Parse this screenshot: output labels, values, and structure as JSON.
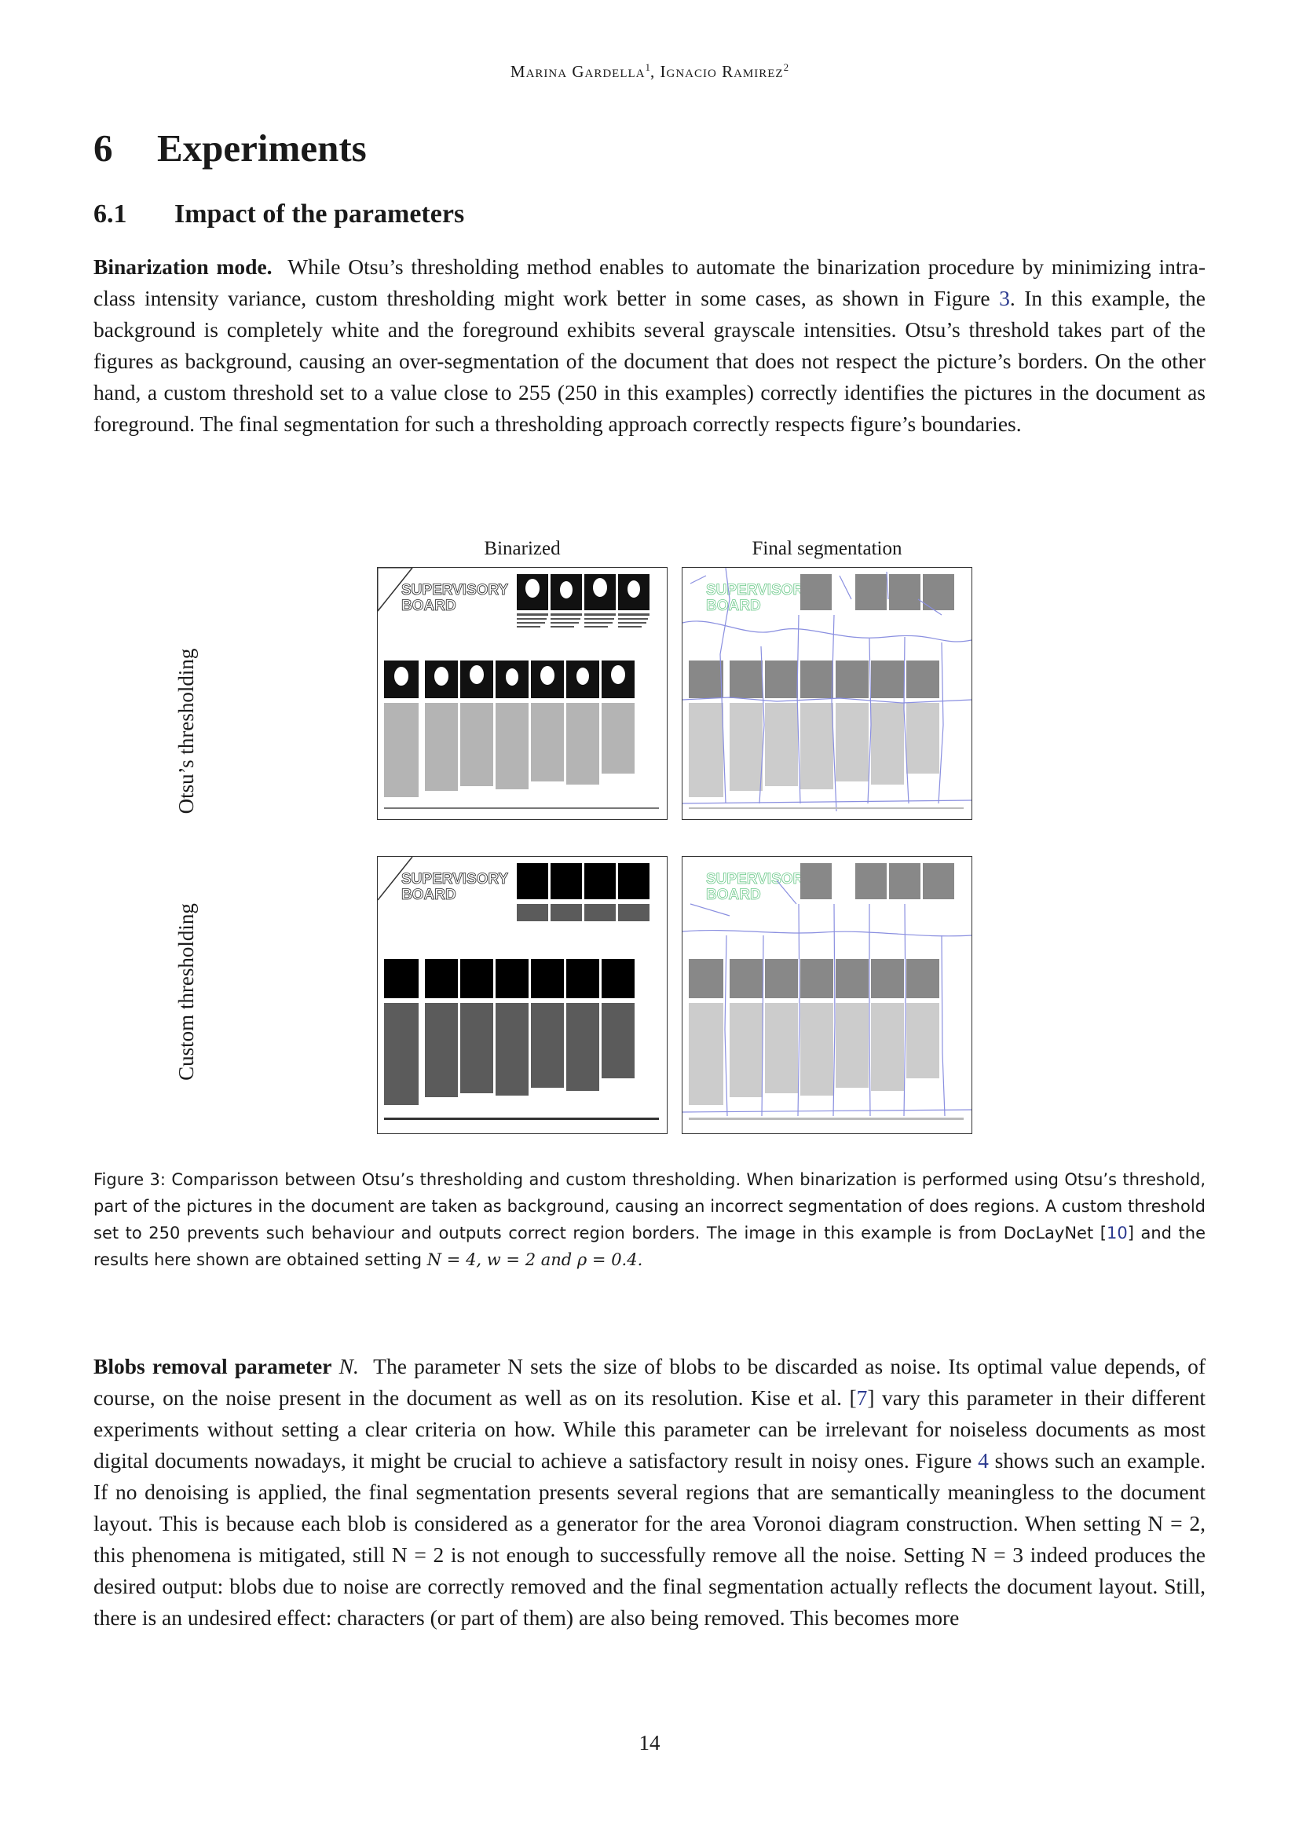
{
  "header": {
    "author1": "Marina Gardella",
    "sup1": "1",
    "sep": ", ",
    "author2": "Ignacio Ramirez",
    "sup2": "2"
  },
  "section": {
    "number": "6",
    "title": "Experiments"
  },
  "subsection": {
    "number": "6.1",
    "title": "Impact of the parameters"
  },
  "paragraph1": {
    "lead": "Binarization mode.",
    "text_a": "While Otsu’s thresholding method enables to automate the binarization procedure by minimizing intra-class intensity variance, custom thresholding might work better in some cases, as shown in Figure ",
    "fig_ref": "3",
    "text_b": ". In this example, the background is completely white and the foreground exhibits several grayscale intensities. Otsu’s threshold takes part of the figures as background, causing an over-segmentation of the document that does not respect the picture’s borders. On the other hand, a custom threshold set to a value close to 255 (250 in this examples) correctly identifies the pictures in the document as foreground. The final segmentation for such a thresholding approach correctly respects figure’s boundaries."
  },
  "figure": {
    "col_left": "Binarized",
    "col_right": "Final segmentation",
    "row_top": "Otsu’s thresholding",
    "row_bottom": "Custom thresholding",
    "doc_heading_line1": "SUPERVISORY",
    "doc_heading_line2": "BOARD",
    "caption_a": "Figure 3: Comparisson between Otsu’s thresholding and custom thresholding. When binarization is performed using Otsu’s threshold, part of the pictures in the document are taken as background, causing an incorrect segmentation of does regions. A custom threshold set to 250 prevents such behaviour and outputs correct region borders. The image in this example is from DocLayNet [",
    "caption_ref": "10",
    "caption_b": "] and the results here shown are obtained setting ",
    "caption_math": "N = 4, w = 2 and ρ = 0.4."
  },
  "paragraph2": {
    "lead": "Blobs removal parameter",
    "lead_math": "N.",
    "text_a": "The parameter N sets the size of blobs to be discarded as noise. Its optimal value depends, of course, on the noise present in the document as well as on its resolution. Kise et al. [",
    "ref1": "7",
    "text_b": "] vary this parameter in their different experiments without setting a clear criteria on how. While this parameter can be irrelevant for noiseless documents as most digital documents nowadays, it might be crucial to achieve a satisfactory result in noisy ones. Figure ",
    "ref2": "4",
    "text_c": " shows such an example. If no denoising is applied, the final segmentation presents several regions that are semantically meaningless to the document layout. This is because each blob is considered as a generator for the area Voronoi diagram construction. When setting N = 2, this phenomena is mitigated, still N = 2 is not enough to successfully remove all the noise. Setting N = 3 indeed produces the desired output: blobs due to noise are correctly removed and the final segmentation actually reflects the document layout. Still, there is an undesired effect: characters (or part of them) are also being removed. This becomes more"
  },
  "page_number": "14",
  "colors": {
    "ref_link": "#2b3a8f",
    "segment_green": "#6cc98a",
    "voronoi_line": "#8a8fe0"
  }
}
